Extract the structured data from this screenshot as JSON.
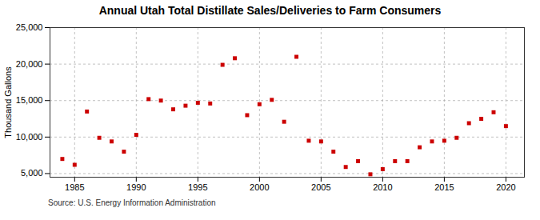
{
  "chart_data": {
    "type": "scatter",
    "title": "Annual Utah Total Distillate Sales/Deliveries to Farm Consumers",
    "ylabel": "Thousand Gallons",
    "annotations": [
      "Source: U.S. Energy Information Administration"
    ],
    "x": [
      1984,
      1985,
      1986,
      1987,
      1988,
      1989,
      1990,
      1991,
      1992,
      1993,
      1994,
      1995,
      1996,
      1997,
      1998,
      1999,
      2000,
      2001,
      2002,
      2003,
      2004,
      2005,
      2006,
      2007,
      2008,
      2009,
      2010,
      2011,
      2012,
      2013,
      2014,
      2015,
      2016,
      2017,
      2018,
      2019,
      2020
    ],
    "values": [
      7000,
      6200,
      13500,
      9900,
      9400,
      8000,
      10300,
      15200,
      15000,
      13800,
      14300,
      14700,
      14600,
      19900,
      20800,
      13000,
      14500,
      15100,
      12100,
      21000,
      9500,
      9400,
      8000,
      5900,
      6700,
      4900,
      5600,
      6700,
      6700,
      8600,
      9400,
      9500,
      9900,
      11900,
      12500,
      13400,
      11500
    ],
    "color": "#cc0000",
    "marker": "square",
    "xlim": [
      1983,
      2021.5
    ],
    "xticks": [
      1985,
      1990,
      1995,
      2000,
      2005,
      2010,
      2015,
      2020
    ],
    "ylim": [
      4500,
      25000
    ],
    "yticks": [
      {
        "value": 5000,
        "label": "5,000"
      },
      {
        "value": 10000,
        "label": "10,000"
      },
      {
        "value": 15000,
        "label": "15,000"
      },
      {
        "value": 20000,
        "label": "20,000"
      },
      {
        "value": 25000,
        "label": "25,000"
      }
    ],
    "grid": true
  }
}
